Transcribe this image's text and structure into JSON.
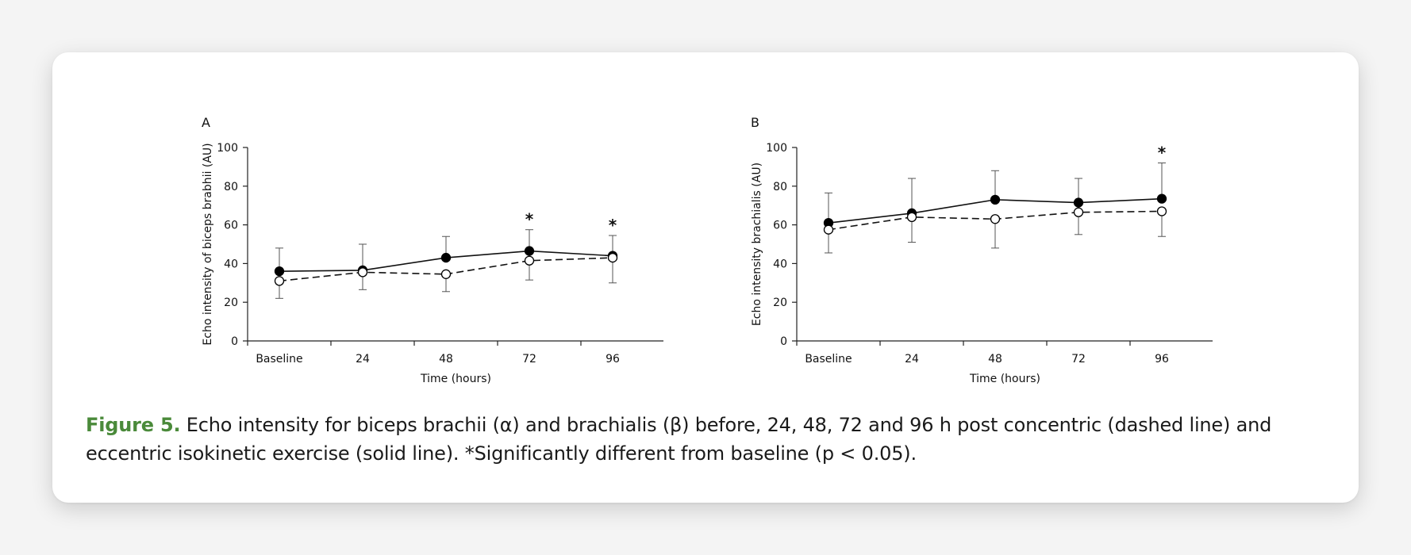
{
  "caption": {
    "label": "Figure 5.",
    "text": " Echo intensity for biceps brachii (α) and brachialis (β) before, 24, 48, 72 and 96 h post concentric (dashed line) and eccentric isokinetic exercise (solid line). *Significantly different from baseline (p < 0.05)."
  },
  "chart_data": [
    {
      "type": "line",
      "panel_label": "A",
      "title": "",
      "xlabel": "Time (hours)",
      "ylabel": "Echo intensity of biceps brabhii (AU)",
      "ylim": [
        0,
        100
      ],
      "yticks": [
        0,
        20,
        40,
        60,
        80,
        100
      ],
      "categories": [
        "Baseline",
        "24",
        "48",
        "72",
        "96"
      ],
      "series": [
        {
          "name": "eccentric",
          "style": "solid",
          "marker": "filled",
          "values": [
            36,
            36.5,
            43,
            46.5,
            44
          ],
          "error": [
            12,
            13.5,
            11,
            11,
            10.5
          ],
          "error_direction": "up"
        },
        {
          "name": "concentric",
          "style": "dashed",
          "marker": "open",
          "values": [
            31,
            35.5,
            34.5,
            41.5,
            43
          ],
          "error": [
            9,
            9,
            9,
            10,
            13
          ],
          "error_direction": "down"
        }
      ],
      "annotations": [
        {
          "category": "72",
          "text": "*"
        },
        {
          "category": "96",
          "text": "*"
        }
      ]
    },
    {
      "type": "line",
      "panel_label": "B",
      "title": "",
      "xlabel": "Time (hours)",
      "ylabel": "Echo intensity brachialis (AU)",
      "ylim": [
        0,
        100
      ],
      "yticks": [
        0,
        20,
        40,
        60,
        80,
        100
      ],
      "categories": [
        "Baseline",
        "24",
        "48",
        "72",
        "96"
      ],
      "series": [
        {
          "name": "eccentric",
          "style": "solid",
          "marker": "filled",
          "values": [
            61,
            66,
            73,
            71.5,
            73.5
          ],
          "error": [
            15.5,
            18,
            15,
            12.5,
            18.5
          ],
          "error_direction": "up"
        },
        {
          "name": "concentric",
          "style": "dashed",
          "marker": "open",
          "values": [
            57.5,
            64,
            63,
            66.5,
            67
          ],
          "error": [
            12,
            13,
            15,
            11.5,
            13
          ],
          "error_direction": "down"
        }
      ],
      "annotations": [
        {
          "category": "96",
          "text": "*"
        }
      ]
    }
  ]
}
